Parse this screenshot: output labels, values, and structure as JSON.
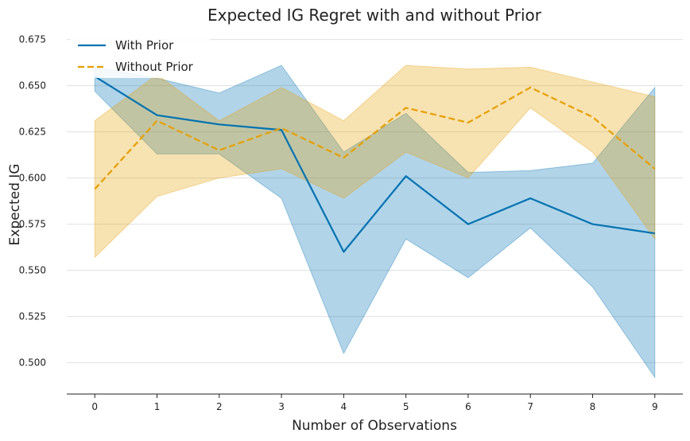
{
  "chart_data": {
    "type": "line",
    "title": "Expected IG Regret with and without Prior",
    "xlabel": "Number of Observations",
    "ylabel": "Expected IG",
    "x": [
      0,
      1,
      2,
      3,
      4,
      5,
      6,
      7,
      8,
      9
    ],
    "xlim": [
      -0.45,
      9.45
    ],
    "ylim": [
      0.483,
      0.68
    ],
    "yticks": [
      "0.500",
      "0.525",
      "0.550",
      "0.575",
      "0.600",
      "0.625",
      "0.650",
      "0.675"
    ],
    "xticks": [
      "0",
      "1",
      "2",
      "3",
      "4",
      "5",
      "6",
      "7",
      "8",
      "9"
    ],
    "grid": "horizontal",
    "legend_position": "top-left",
    "series": [
      {
        "name": "With Prior",
        "color": "#0072B2",
        "line_style": "solid",
        "values": [
          0.655,
          0.634,
          0.629,
          0.626,
          0.56,
          0.601,
          0.575,
          0.589,
          0.575,
          0.57
        ],
        "upper": [
          0.66,
          0.654,
          0.646,
          0.661,
          0.614,
          0.635,
          0.603,
          0.604,
          0.608,
          0.649
        ],
        "lower": [
          0.647,
          0.613,
          0.613,
          0.589,
          0.505,
          0.567,
          0.546,
          0.573,
          0.541,
          0.492
        ]
      },
      {
        "name": "Without Prior",
        "color": "#E69F00",
        "line_style": "dashed",
        "values": [
          0.594,
          0.631,
          0.615,
          0.627,
          0.611,
          0.638,
          0.63,
          0.649,
          0.633,
          0.605
        ],
        "upper": [
          0.631,
          0.656,
          0.631,
          0.649,
          0.631,
          0.661,
          0.659,
          0.66,
          0.652,
          0.644
        ],
        "lower": [
          0.557,
          0.59,
          0.6,
          0.605,
          0.589,
          0.614,
          0.6,
          0.638,
          0.614,
          0.567
        ]
      }
    ]
  }
}
